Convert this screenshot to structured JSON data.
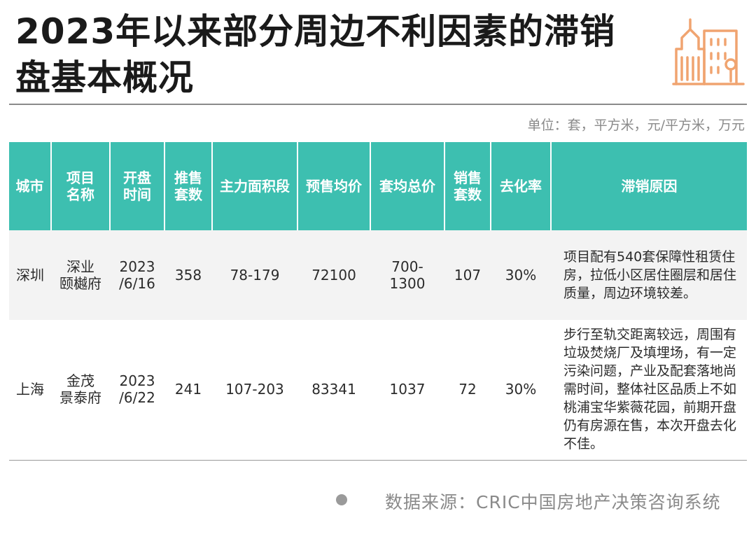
{
  "title": "2023年以来部分周边不利因素的滞销盘基本概况",
  "unit": "单位：套，平方米，元/平方米，万元",
  "icon": "building-icon",
  "accent_color": "#3dbfb0",
  "icon_color": "#f0a470",
  "table": {
    "headers": [
      "城市",
      "项目\n名称",
      "开盘\n时间",
      "推售\n套数",
      "主力面积段",
      "预售均价",
      "套均总价",
      "销售\n套数",
      "去化率",
      "滞销原因"
    ],
    "rows": [
      [
        "深圳",
        "深业\n颐樾府",
        "2023\n/6/16",
        "358",
        "78-179",
        "72100",
        "700-\n1300",
        "107",
        "30%",
        "项目配有540套保障性租赁住房，拉低小区居住圈层和居住质量，周边环境较差。"
      ],
      [
        "上海",
        "金茂\n景泰府",
        "2023\n/6/22",
        "241",
        "107-203",
        "83341",
        "1037",
        "72",
        "30%",
        "步行至轨交距离较远，周围有垃圾焚烧厂及填埋场，有一定污染问题，产业及配套落地尚需时间，整体社区品质上不如桃浦宝华紫薇花园，前期开盘仍有房源在售，本次开盘去化不佳。"
      ]
    ]
  },
  "source": "数据来源：CRIC中国房地产决策咨询系统"
}
